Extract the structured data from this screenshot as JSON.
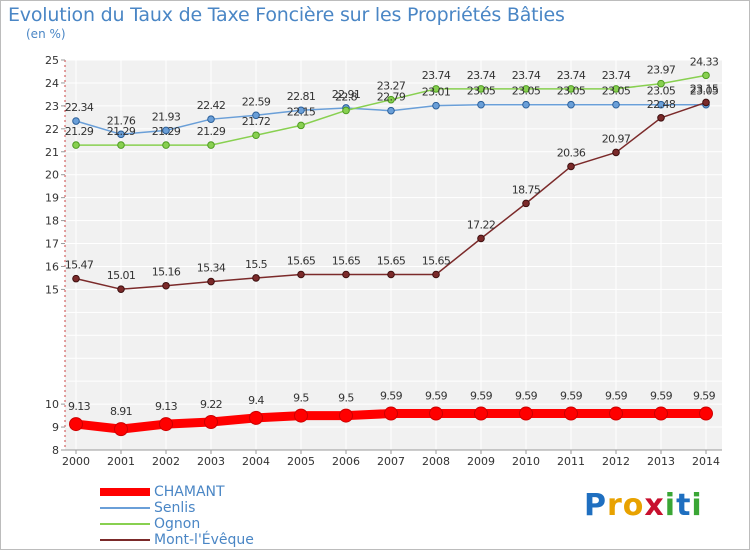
{
  "title": "Evolution du Taux de Taxe Foncière sur les Propriétés Bâties",
  "unit_label": "(en %)",
  "logo": {
    "text": "Proxiti",
    "letters": [
      {
        "ch": "P",
        "color": "#1f6fc0"
      },
      {
        "ch": "r",
        "color": "#e8a200"
      },
      {
        "ch": "o",
        "color": "#e8a200"
      },
      {
        "ch": "x",
        "color": "#c8102e"
      },
      {
        "ch": "i",
        "color": "#3aa635"
      },
      {
        "ch": "t",
        "color": "#1f6fc0"
      },
      {
        "ch": "i",
        "color": "#3aa635"
      }
    ]
  },
  "chart_data": {
    "type": "line",
    "title": "Evolution du Taux de Taxe Foncière sur les Propriétés Bâties",
    "ylabel": "(en %)",
    "xlabel": "",
    "ylim": [
      8,
      25
    ],
    "yticks": [
      8,
      9,
      10,
      15,
      16,
      17,
      18,
      19,
      20,
      21,
      22,
      23,
      24,
      25
    ],
    "grid": true,
    "legend_position": "bottom-left",
    "categories": [
      "2000",
      "2001",
      "2002",
      "2003",
      "2004",
      "2005",
      "2006",
      "2007",
      "2008",
      "2009",
      "2010",
      "2011",
      "2012",
      "2013",
      "2014"
    ],
    "series": [
      {
        "name": "CHAMANT",
        "color": "#ff0000",
        "values": [
          9.13,
          8.91,
          9.13,
          9.22,
          9.4,
          9.5,
          9.5,
          9.59,
          9.59,
          9.59,
          9.59,
          9.59,
          9.59,
          9.59,
          9.59
        ],
        "labels": [
          "9.13",
          "8.91",
          "9.13",
          "9.22",
          "9.4",
          "9.5",
          "9.5",
          "9.59",
          "9.59",
          "9.59",
          "9.59",
          "9.59",
          "9.59",
          "9.59",
          "9.59"
        ]
      },
      {
        "name": "Senlis",
        "color": "#6a9fd8",
        "values": [
          22.34,
          21.76,
          21.93,
          22.42,
          22.59,
          22.81,
          22.91,
          22.79,
          23.01,
          23.05,
          23.05,
          23.05,
          23.05,
          23.05,
          23.05
        ],
        "labels": [
          "22.34",
          "21.76",
          "21.93",
          "22.42",
          "22.59",
          "22.81",
          "22.91",
          "22.79",
          "23.01",
          "23.05",
          "23.05",
          "23.05",
          "23.05",
          "23.05",
          "23.05"
        ]
      },
      {
        "name": "Ognon",
        "color": "#88d050",
        "values": [
          21.29,
          21.29,
          21.29,
          21.29,
          21.72,
          22.15,
          22.8,
          23.27,
          23.74,
          23.74,
          23.74,
          23.74,
          23.74,
          23.97,
          24.33
        ],
        "labels": [
          "21.29",
          "21.29",
          "21.29",
          "21.29",
          "21.72",
          "22.15",
          "22.8",
          "23.27",
          "23.74",
          "23.74",
          "23.74",
          "23.74",
          "23.74",
          "23.97",
          "24.33"
        ]
      },
      {
        "name": "Mont-l'Évêque",
        "color": "#7b2a2a",
        "values": [
          15.47,
          15.01,
          15.16,
          15.34,
          15.5,
          15.65,
          15.65,
          15.65,
          15.65,
          17.22,
          18.75,
          20.36,
          20.97,
          22.48,
          23.15
        ],
        "labels": [
          "15.47",
          "15.01",
          "15.16",
          "15.34",
          "15.5",
          "15.65",
          "15.65",
          "15.65",
          "15.65",
          "17.22",
          "18.75",
          "20.36",
          "20.97",
          "22.48",
          "23.15"
        ]
      }
    ]
  }
}
